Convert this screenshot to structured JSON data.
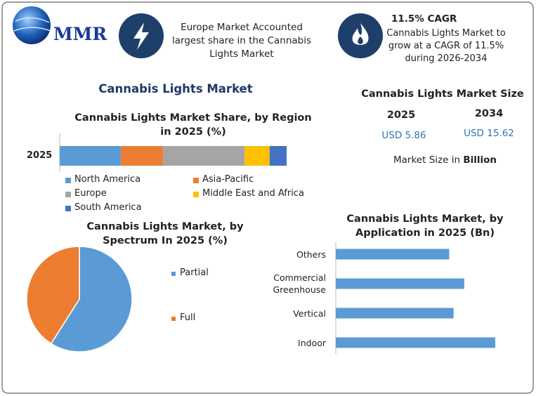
{
  "logo": "MMR",
  "header": {
    "highlight": "Europe Market Accounted largest share in the Cannabis Lights Market",
    "cagr_title": "11.5% CAGR",
    "cagr_text": "Cannabis Lights Market to grow at a CAGR of 11.5% during 2026-2034"
  },
  "title": "Cannabis Lights Market",
  "market_size": {
    "title": "Cannabis Lights Market Size",
    "columns": [
      {
        "year": "2025",
        "value": "USD 5.86"
      },
      {
        "year": "2034",
        "value": "USD 15.62"
      }
    ],
    "note": "Market Size in",
    "note_unit": "Billion"
  },
  "chart_data": [
    {
      "type": "stacked-bar",
      "title": "Cannabis Lights Market Share, by Region in 2025 (%)",
      "categories": [
        "2025"
      ],
      "series": [
        {
          "name": "North America",
          "color": "#5b9bd5",
          "values": [
            27
          ]
        },
        {
          "name": "Asia-Pacific",
          "color": "#ed7d31",
          "values": [
            18.5
          ]
        },
        {
          "name": "Europe",
          "color": "#a5a5a5",
          "values": [
            36
          ]
        },
        {
          "name": "Middle East and Africa",
          "color": "#ffc000",
          "values": [
            11
          ]
        },
        {
          "name": "South America",
          "color": "#4472c4",
          "values": [
            7.5
          ]
        }
      ]
    },
    {
      "type": "pie",
      "title": "Cannabis Lights Market, by Spectrum In 2025 (%)",
      "categories": [
        "Partial",
        "Full"
      ],
      "values": [
        59,
        41
      ],
      "colors": [
        "#5b9bd5",
        "#ed7d31"
      ]
    },
    {
      "type": "hbar",
      "title": "Cannabis Lights Market, by Application in 2025 (Bn)",
      "categories": [
        "Others",
        "Commercial Greenhouse",
        "Vertical",
        "Indoor"
      ],
      "values": [
        1.28,
        1.45,
        1.33,
        1.8
      ],
      "color": "#5b9bd5"
    }
  ]
}
